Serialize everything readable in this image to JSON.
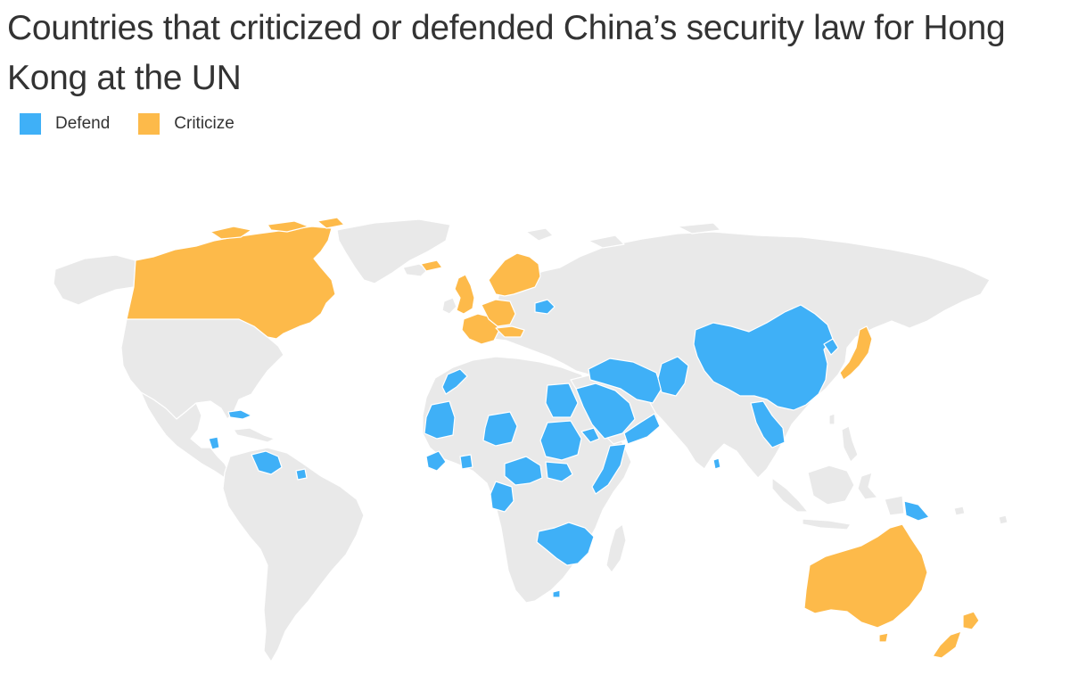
{
  "title": "Countries that criticized or defended China’s security law for Hong Kong at the UN",
  "legend": [
    {
      "label": "Defend",
      "color": "#3fb0f7"
    },
    {
      "label": "Criticize",
      "color": "#fdba4a"
    }
  ],
  "colors": {
    "neutral": "#e9e9e9",
    "border": "#ffffff",
    "defend": "#3fb0f7",
    "criticize": "#fdba4a"
  }
}
